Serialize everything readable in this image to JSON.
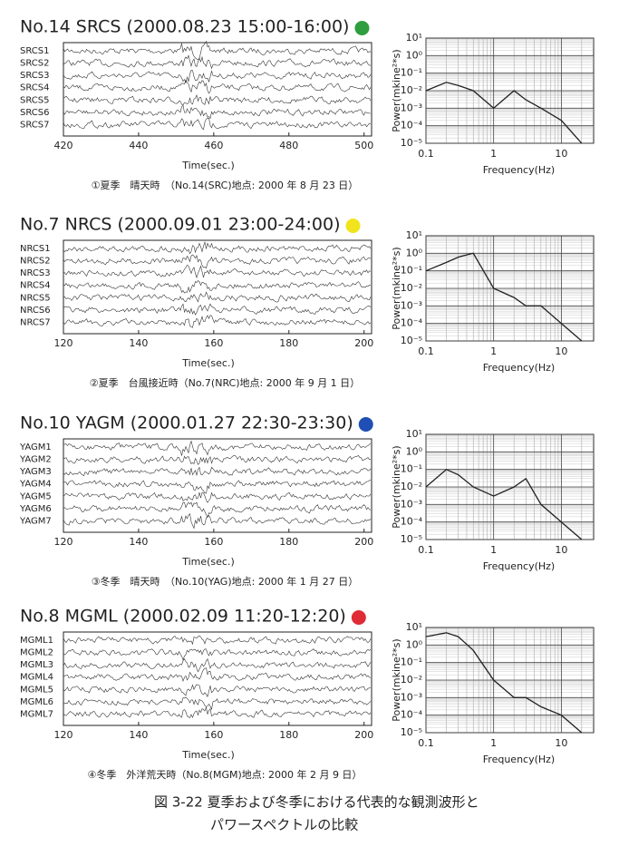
{
  "panels": [
    {
      "title": "No.14 SRCS (2000.08.23 15:00-16:00)",
      "dot_color": "#2e9e3e",
      "waveform": {
        "type": "line",
        "channels": [
          "SRCS1",
          "SRCS2",
          "SRCS3",
          "SRCS4",
          "SRCS5",
          "SRCS6",
          "SRCS7"
        ],
        "xlabel": "Time(sec.)",
        "xlim": [
          420,
          502
        ],
        "xticks": [
          420,
          440,
          460,
          480,
          500
        ]
      },
      "spectrum": {
        "type": "line",
        "xlabel": "Frequency(Hz)",
        "ylabel": "Power(mkine²*s)",
        "log_x": true,
        "log_y": true,
        "grid": true,
        "xlim": [
          0.1,
          30
        ],
        "ylim": [
          1e-05,
          10
        ],
        "xticks": [
          0.1,
          1,
          10
        ],
        "yticks": [
          {
            "value": 1e-05,
            "label": "10⁻⁵"
          },
          {
            "value": 0.0001,
            "label": "10⁻⁴"
          },
          {
            "value": 0.001,
            "label": "10⁻³"
          },
          {
            "value": 0.01,
            "label": "10⁻²"
          },
          {
            "value": 0.1,
            "label": "10⁻¹"
          },
          {
            "value": 1,
            "label": "10⁰"
          },
          {
            "value": 10,
            "label": "10¹"
          }
        ],
        "x": [
          0.1,
          0.2,
          0.3,
          0.5,
          1,
          2,
          3,
          5,
          10,
          20
        ],
        "series": [
          {
            "color": "#222",
            "values": [
              0.01,
              0.03,
              0.02,
              0.01,
              0.001,
              0.01,
              0.003,
              0.001,
              0.0002,
              1e-05
            ]
          }
        ]
      },
      "caption": "①夏季　晴天時　（No.14(SRC)地点: 2000 年 8 月 23 日）"
    },
    {
      "title": "No.7 NRCS (2000.09.01 23:00-24:00)",
      "dot_color": "#f2e41c",
      "waveform": {
        "type": "line",
        "channels": [
          "NRCS1",
          "NRCS2",
          "NRCS3",
          "NRCS4",
          "NRCS5",
          "NRCS6",
          "NRCS7"
        ],
        "xlabel": "Time(sec.)",
        "xlim": [
          120,
          202
        ],
        "xticks": [
          120,
          140,
          160,
          180,
          200
        ]
      },
      "spectrum": {
        "type": "line",
        "xlabel": "Frequency(Hz)",
        "ylabel": "Power(mkine²*s)",
        "log_x": true,
        "log_y": true,
        "grid": true,
        "xlim": [
          0.1,
          30
        ],
        "ylim": [
          1e-05,
          10
        ],
        "xticks": [
          0.1,
          1,
          10
        ],
        "yticks": [
          {
            "value": 1e-05,
            "label": "10⁻⁵"
          },
          {
            "value": 0.0001,
            "label": "10⁻⁴"
          },
          {
            "value": 0.001,
            "label": "10⁻³"
          },
          {
            "value": 0.01,
            "label": "10⁻²"
          },
          {
            "value": 0.1,
            "label": "10⁻¹"
          },
          {
            "value": 1,
            "label": "10⁰"
          },
          {
            "value": 10,
            "label": "10¹"
          }
        ],
        "x": [
          0.1,
          0.2,
          0.3,
          0.5,
          1,
          2,
          3,
          5,
          10,
          20
        ],
        "series": [
          {
            "color": "#222",
            "values": [
              0.1,
              0.3,
              0.6,
              1,
              0.01,
              0.003,
              0.001,
              0.001,
              0.0001,
              1e-05
            ]
          }
        ]
      },
      "caption": "②夏季　台風接近時（No.7(NRC)地点: 2000 年 9 月 1 日）"
    },
    {
      "title": "No.10 YAGM (2000.01.27 22:30-23:30)",
      "dot_color": "#1f4fb4",
      "waveform": {
        "type": "line",
        "channels": [
          "YAGM1",
          "YAGM2",
          "YAGM3",
          "YAGM4",
          "YAGM5",
          "YAGM6",
          "YAGM7"
        ],
        "xlabel": "Time(sec.)",
        "xlim": [
          120,
          202
        ],
        "xticks": [
          120,
          140,
          160,
          180,
          200
        ]
      },
      "spectrum": {
        "type": "line",
        "xlabel": "Frequency(Hz)",
        "ylabel": "Power(mkine²*s)",
        "log_x": true,
        "log_y": true,
        "grid": true,
        "xlim": [
          0.1,
          30
        ],
        "ylim": [
          1e-05,
          10
        ],
        "xticks": [
          0.1,
          1,
          10
        ],
        "yticks": [
          {
            "value": 1e-05,
            "label": "10⁻⁵"
          },
          {
            "value": 0.0001,
            "label": "10⁻⁴"
          },
          {
            "value": 0.001,
            "label": "10⁻³"
          },
          {
            "value": 0.01,
            "label": "10⁻²"
          },
          {
            "value": 0.1,
            "label": "10⁻¹"
          },
          {
            "value": 1,
            "label": "10⁰"
          },
          {
            "value": 10,
            "label": "10¹"
          }
        ],
        "x": [
          0.1,
          0.2,
          0.3,
          0.5,
          1,
          2,
          3,
          5,
          10,
          20
        ],
        "series": [
          {
            "color": "#222",
            "values": [
              0.01,
              0.1,
              0.05,
              0.01,
              0.003,
              0.01,
              0.03,
              0.001,
              0.0001,
              1e-05
            ]
          }
        ]
      },
      "caption": "③冬季　晴天時　（No.10(YAG)地点: 2000 年 1 月 27 日）"
    },
    {
      "title": "No.8 MGML (2000.02.09 11:20-12:20)",
      "dot_color": "#e02a36",
      "waveform": {
        "type": "line",
        "channels": [
          "MGML1",
          "MGML2",
          "MGML3",
          "MGML4",
          "MGML5",
          "MGML6",
          "MGML7"
        ],
        "xlabel": "Time(sec.)",
        "xlim": [
          120,
          202
        ],
        "xticks": [
          120,
          140,
          160,
          180,
          200
        ]
      },
      "spectrum": {
        "type": "line",
        "xlabel": "Frequency(Hz)",
        "ylabel": "Power(mkine²*s)",
        "log_x": true,
        "log_y": true,
        "grid": true,
        "xlim": [
          0.1,
          30
        ],
        "ylim": [
          1e-05,
          10
        ],
        "xticks": [
          0.1,
          1,
          10
        ],
        "yticks": [
          {
            "value": 1e-05,
            "label": "10⁻⁵"
          },
          {
            "value": 0.0001,
            "label": "10⁻⁴"
          },
          {
            "value": 0.001,
            "label": "10⁻³"
          },
          {
            "value": 0.01,
            "label": "10⁻²"
          },
          {
            "value": 0.1,
            "label": "10⁻¹"
          },
          {
            "value": 1,
            "label": "10⁰"
          },
          {
            "value": 10,
            "label": "10¹"
          }
        ],
        "x": [
          0.1,
          0.2,
          0.3,
          0.5,
          1,
          2,
          3,
          5,
          10,
          20
        ],
        "series": [
          {
            "color": "#222",
            "values": [
              3,
              5,
              3,
              0.5,
              0.01,
              0.001,
              0.001,
              0.0003,
              0.0001,
              1e-05
            ]
          }
        ]
      },
      "caption": "④冬季　外洋荒天時（No.8(MGM)地点: 2000 年 2 月 9 日）"
    }
  ],
  "figure_caption": [
    "図 3-22  夏季および冬季における代表的な観測波形と",
    "パワースペクトルの比較"
  ]
}
